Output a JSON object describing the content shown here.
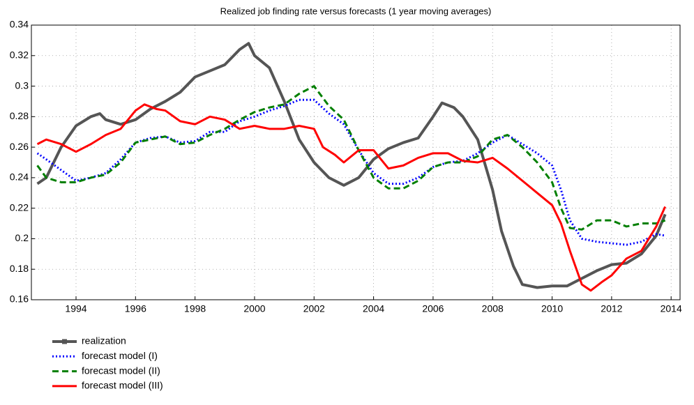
{
  "chart_data": {
    "type": "line",
    "title": "Realized job finding rate versus forecasts (1 year moving averages)",
    "xlim": [
      1992.5,
      2014.3
    ],
    "xticks": [
      1994,
      1996,
      1998,
      2000,
      2002,
      2004,
      2006,
      2008,
      2010,
      2012,
      2014
    ],
    "ylim": [
      0.16,
      0.34
    ],
    "yticks": [
      0.16,
      0.18,
      0.2,
      0.22,
      0.24,
      0.26,
      0.28,
      0.3,
      0.32,
      0.34
    ],
    "grid": true,
    "legend": "below",
    "series": [
      {
        "name": "realization",
        "color": "#555555",
        "style": "solid-square",
        "x": [
          1992.7,
          1993.0,
          1993.5,
          1994.0,
          1994.5,
          1994.8,
          1995.0,
          1995.5,
          1996.0,
          1996.5,
          1997.0,
          1997.5,
          1998.0,
          1998.5,
          1999.0,
          1999.5,
          1999.8,
          2000.0,
          2000.5,
          2001.0,
          2001.5,
          2002.0,
          2002.5,
          2003.0,
          2003.5,
          2004.0,
          2004.5,
          2005.0,
          2005.5,
          2006.0,
          2006.3,
          2006.7,
          2007.0,
          2007.5,
          2008.0,
          2008.3,
          2008.7,
          2009.0,
          2009.5,
          2010.0,
          2010.5,
          2011.0,
          2011.5,
          2012.0,
          2012.5,
          2013.0,
          2013.5,
          2013.8
        ],
        "values": [
          0.236,
          0.24,
          0.26,
          0.274,
          0.28,
          0.282,
          0.278,
          0.275,
          0.278,
          0.285,
          0.29,
          0.296,
          0.306,
          0.31,
          0.314,
          0.324,
          0.328,
          0.32,
          0.312,
          0.29,
          0.265,
          0.25,
          0.24,
          0.235,
          0.24,
          0.252,
          0.259,
          0.263,
          0.266,
          0.28,
          0.289,
          0.286,
          0.28,
          0.265,
          0.232,
          0.205,
          0.182,
          0.17,
          0.168,
          0.169,
          0.169,
          0.174,
          0.179,
          0.183,
          0.184,
          0.19,
          0.202,
          0.216
        ]
      },
      {
        "name": "forecast model (I)",
        "color": "#0000ff",
        "style": "dotted",
        "x": [
          1992.7,
          1993.0,
          1993.5,
          1994.0,
          1994.5,
          1995.0,
          1995.5,
          1996.0,
          1996.5,
          1997.0,
          1997.5,
          1998.0,
          1998.5,
          1999.0,
          1999.5,
          2000.0,
          2000.5,
          2001.0,
          2001.5,
          2002.0,
          2002.5,
          2003.0,
          2003.5,
          2004.0,
          2004.5,
          2005.0,
          2005.5,
          2006.0,
          2006.5,
          2007.0,
          2007.5,
          2008.0,
          2008.5,
          2009.0,
          2009.5,
          2010.0,
          2010.3,
          2010.6,
          2011.0,
          2011.5,
          2012.0,
          2012.5,
          2013.0,
          2013.5,
          2013.8
        ],
        "values": [
          0.256,
          0.252,
          0.245,
          0.238,
          0.24,
          0.243,
          0.252,
          0.263,
          0.266,
          0.267,
          0.263,
          0.264,
          0.27,
          0.27,
          0.277,
          0.28,
          0.284,
          0.287,
          0.291,
          0.291,
          0.282,
          0.275,
          0.258,
          0.243,
          0.236,
          0.236,
          0.24,
          0.247,
          0.25,
          0.251,
          0.256,
          0.263,
          0.268,
          0.262,
          0.256,
          0.248,
          0.232,
          0.212,
          0.2,
          0.198,
          0.197,
          0.196,
          0.198,
          0.203,
          0.202
        ]
      },
      {
        "name": "forecast model (II)",
        "color": "#007f00",
        "style": "dashed",
        "x": [
          1992.7,
          1993.0,
          1993.5,
          1994.0,
          1994.5,
          1995.0,
          1995.5,
          1996.0,
          1996.5,
          1997.0,
          1997.5,
          1998.0,
          1998.5,
          1999.0,
          1999.5,
          2000.0,
          2000.5,
          2001.0,
          2001.5,
          2002.0,
          2002.5,
          2003.0,
          2003.5,
          2004.0,
          2004.5,
          2005.0,
          2005.5,
          2006.0,
          2006.5,
          2007.0,
          2007.5,
          2008.0,
          2008.5,
          2009.0,
          2009.5,
          2010.0,
          2010.3,
          2010.6,
          2011.0,
          2011.5,
          2012.0,
          2012.5,
          2013.0,
          2013.5,
          2013.8
        ],
        "values": [
          0.248,
          0.24,
          0.237,
          0.237,
          0.24,
          0.242,
          0.25,
          0.263,
          0.265,
          0.267,
          0.262,
          0.263,
          0.268,
          0.272,
          0.278,
          0.283,
          0.286,
          0.288,
          0.295,
          0.3,
          0.287,
          0.278,
          0.258,
          0.24,
          0.233,
          0.233,
          0.238,
          0.247,
          0.25,
          0.25,
          0.254,
          0.265,
          0.268,
          0.26,
          0.25,
          0.237,
          0.22,
          0.207,
          0.206,
          0.212,
          0.212,
          0.208,
          0.21,
          0.21,
          0.212
        ]
      },
      {
        "name": "forecast model (III)",
        "color": "#ff0000",
        "style": "solid",
        "x": [
          1992.7,
          1993.0,
          1993.5,
          1994.0,
          1994.5,
          1995.0,
          1995.5,
          1996.0,
          1996.3,
          1996.7,
          1997.0,
          1997.5,
          1998.0,
          1998.5,
          1999.0,
          1999.5,
          2000.0,
          2000.5,
          2001.0,
          2001.5,
          2002.0,
          2002.3,
          2002.7,
          2003.0,
          2003.5,
          2004.0,
          2004.5,
          2005.0,
          2005.5,
          2006.0,
          2006.5,
          2007.0,
          2007.5,
          2008.0,
          2008.5,
          2009.0,
          2009.5,
          2010.0,
          2010.3,
          2010.6,
          2011.0,
          2011.3,
          2011.7,
          2012.0,
          2012.5,
          2013.0,
          2013.5,
          2013.8
        ],
        "values": [
          0.262,
          0.265,
          0.262,
          0.257,
          0.262,
          0.268,
          0.272,
          0.284,
          0.288,
          0.285,
          0.284,
          0.277,
          0.275,
          0.28,
          0.278,
          0.272,
          0.274,
          0.272,
          0.272,
          0.274,
          0.272,
          0.26,
          0.255,
          0.25,
          0.258,
          0.258,
          0.246,
          0.248,
          0.253,
          0.256,
          0.256,
          0.251,
          0.25,
          0.253,
          0.246,
          0.238,
          0.23,
          0.222,
          0.21,
          0.192,
          0.17,
          0.166,
          0.172,
          0.176,
          0.187,
          0.192,
          0.208,
          0.221
        ]
      }
    ]
  }
}
